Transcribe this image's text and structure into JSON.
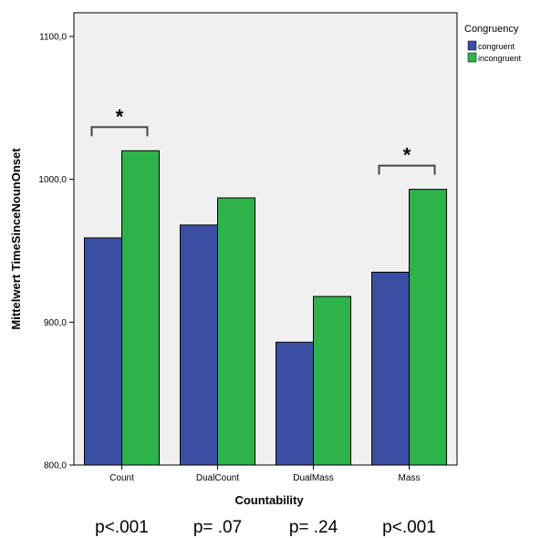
{
  "chart_data": {
    "type": "bar",
    "categories": [
      "Count",
      "DualCount",
      "DualMass",
      "Mass"
    ],
    "series": [
      {
        "name": "congruent",
        "values": [
          959,
          968,
          886,
          935
        ],
        "color": "#3a4fa3"
      },
      {
        "name": "incongruent",
        "values": [
          1020,
          987,
          918,
          993
        ],
        "color": "#2db34a"
      }
    ],
    "xlabel": "Countability",
    "ylabel": "Mittelwert TimeSinceNounOnset",
    "ylim": [
      800,
      1100
    ],
    "yticks": [
      800,
      900,
      1000,
      1100
    ],
    "ytick_labels": [
      "800,0",
      "900,0",
      "1000,0",
      "1100,0"
    ],
    "legend": {
      "title": "Congruency",
      "placement": "right"
    },
    "significance": [
      {
        "category": "Count",
        "label": "*"
      },
      {
        "category": "Mass",
        "label": "*"
      }
    ],
    "p_values": [
      "p<.001",
      "p= .07",
      "p= .24",
      "p<.001"
    ],
    "plot_background": "#f0f0f0",
    "grid": false
  }
}
